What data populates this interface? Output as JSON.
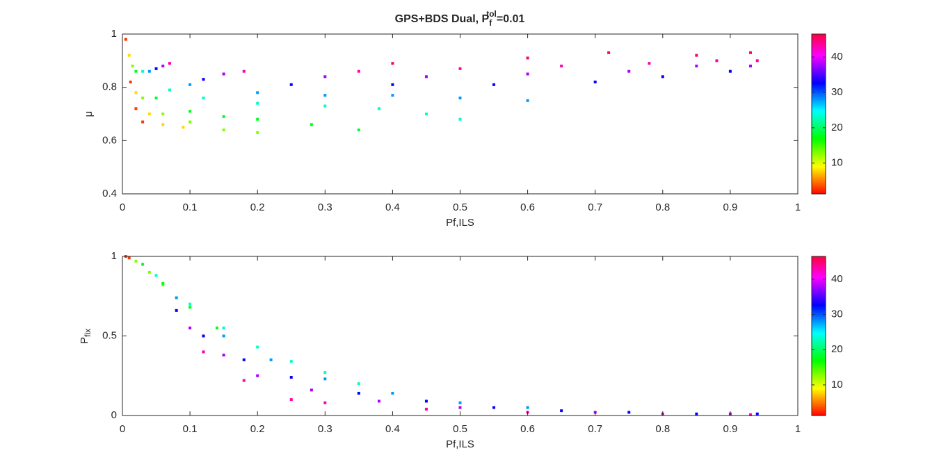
{
  "chart_data": [
    {
      "type": "scatter",
      "title": "GPS+BDS Dual, P",
      "title_subscript": "f",
      "title_superscript": "tol",
      "title_end": "=0.01",
      "xlabel": "Pf,ILS",
      "ylabel": "μ",
      "xlim": [
        0,
        1
      ],
      "xticks": [
        0,
        0.1,
        0.2,
        0.3,
        0.4,
        0.5,
        0.6,
        0.7,
        0.8,
        0.9,
        1
      ],
      "ylim": [
        0.4,
        1
      ],
      "yticks": [
        0.4,
        0.6,
        0.8,
        1
      ],
      "colorbar": true,
      "clim": [
        1.3,
        46.5
      ],
      "cticks": [
        10,
        20,
        30,
        40
      ],
      "series": [
        {
          "color_value": 3,
          "x": [
            0.005,
            0.012,
            0.02,
            0.03
          ],
          "y": [
            0.98,
            0.82,
            0.72,
            0.67
          ]
        },
        {
          "color_value": 8,
          "x": [
            0.01,
            0.02,
            0.04,
            0.06,
            0.09
          ],
          "y": [
            0.92,
            0.78,
            0.7,
            0.66,
            0.65
          ]
        },
        {
          "color_value": 13,
          "x": [
            0.015,
            0.03,
            0.06,
            0.1,
            0.15,
            0.2
          ],
          "y": [
            0.88,
            0.76,
            0.7,
            0.67,
            0.64,
            0.63
          ]
        },
        {
          "color_value": 18,
          "x": [
            0.02,
            0.05,
            0.1,
            0.15,
            0.2,
            0.28,
            0.35
          ],
          "y": [
            0.86,
            0.76,
            0.71,
            0.69,
            0.68,
            0.66,
            0.64
          ]
        },
        {
          "color_value": 23,
          "x": [
            0.03,
            0.07,
            0.12,
            0.2,
            0.3,
            0.38,
            0.45,
            0.5
          ],
          "y": [
            0.86,
            0.79,
            0.76,
            0.74,
            0.73,
            0.72,
            0.7,
            0.68
          ]
        },
        {
          "color_value": 28,
          "x": [
            0.04,
            0.1,
            0.2,
            0.3,
            0.4,
            0.5,
            0.6
          ],
          "y": [
            0.86,
            0.81,
            0.78,
            0.77,
            0.77,
            0.76,
            0.75
          ]
        },
        {
          "color_value": 33,
          "x": [
            0.05,
            0.12,
            0.25,
            0.4,
            0.55,
            0.7,
            0.8,
            0.9
          ],
          "y": [
            0.87,
            0.83,
            0.81,
            0.81,
            0.81,
            0.82,
            0.84,
            0.86
          ]
        },
        {
          "color_value": 38,
          "x": [
            0.06,
            0.15,
            0.3,
            0.45,
            0.6,
            0.75,
            0.85,
            0.93
          ],
          "y": [
            0.88,
            0.85,
            0.84,
            0.84,
            0.85,
            0.86,
            0.88,
            0.88
          ]
        },
        {
          "color_value": 43,
          "x": [
            0.07,
            0.18,
            0.35,
            0.5,
            0.65,
            0.78,
            0.88,
            0.94
          ],
          "y": [
            0.89,
            0.86,
            0.86,
            0.87,
            0.88,
            0.89,
            0.9,
            0.9
          ]
        },
        {
          "color_value": 45,
          "x": [
            0.4,
            0.6,
            0.72,
            0.85,
            0.93
          ],
          "y": [
            0.89,
            0.91,
            0.93,
            0.92,
            0.93
          ]
        }
      ]
    },
    {
      "type": "scatter",
      "xlabel": "Pf,ILS",
      "ylabel": "P",
      "ylabel_subscript": "fix",
      "xlim": [
        0,
        1
      ],
      "xticks": [
        0,
        0.1,
        0.2,
        0.3,
        0.4,
        0.5,
        0.6,
        0.7,
        0.8,
        0.9,
        1
      ],
      "ylim": [
        0,
        1
      ],
      "yticks": [
        0,
        0.5,
        1
      ],
      "colorbar": true,
      "clim": [
        1.3,
        46.5
      ],
      "cticks": [
        10,
        20,
        30,
        40
      ],
      "series": [
        {
          "color_value": 3,
          "x": [
            0.005,
            0.01
          ],
          "y": [
            1,
            0.99
          ]
        },
        {
          "color_value": 13,
          "x": [
            0.02,
            0.04,
            0.06
          ],
          "y": [
            0.97,
            0.9,
            0.82
          ]
        },
        {
          "color_value": 18,
          "x": [
            0.03,
            0.06,
            0.1,
            0.14
          ],
          "y": [
            0.95,
            0.83,
            0.68,
            0.55
          ]
        },
        {
          "color_value": 23,
          "x": [
            0.05,
            0.1,
            0.15,
            0.2,
            0.25,
            0.3,
            0.35
          ],
          "y": [
            0.88,
            0.7,
            0.55,
            0.43,
            0.34,
            0.27,
            0.2
          ]
        },
        {
          "color_value": 28,
          "x": [
            0.08,
            0.15,
            0.22,
            0.3,
            0.4,
            0.5,
            0.6
          ],
          "y": [
            0.74,
            0.5,
            0.35,
            0.23,
            0.14,
            0.08,
            0.05
          ]
        },
        {
          "color_value": 33,
          "x": [
            0.08,
            0.12,
            0.18,
            0.25,
            0.35,
            0.45,
            0.55,
            0.65,
            0.75,
            0.85,
            0.94
          ],
          "y": [
            0.66,
            0.5,
            0.35,
            0.24,
            0.14,
            0.09,
            0.05,
            0.03,
            0.02,
            0.01,
            0.01
          ]
        },
        {
          "color_value": 38,
          "x": [
            0.1,
            0.15,
            0.2,
            0.28,
            0.38,
            0.5,
            0.7,
            0.9
          ],
          "y": [
            0.55,
            0.38,
            0.25,
            0.16,
            0.09,
            0.05,
            0.02,
            0.01
          ]
        },
        {
          "color_value": 43,
          "x": [
            0.12,
            0.18,
            0.25,
            0.3,
            0.45,
            0.6,
            0.8,
            0.93
          ],
          "y": [
            0.4,
            0.22,
            0.1,
            0.08,
            0.04,
            0.02,
            0.01,
            0.005
          ]
        }
      ]
    }
  ]
}
